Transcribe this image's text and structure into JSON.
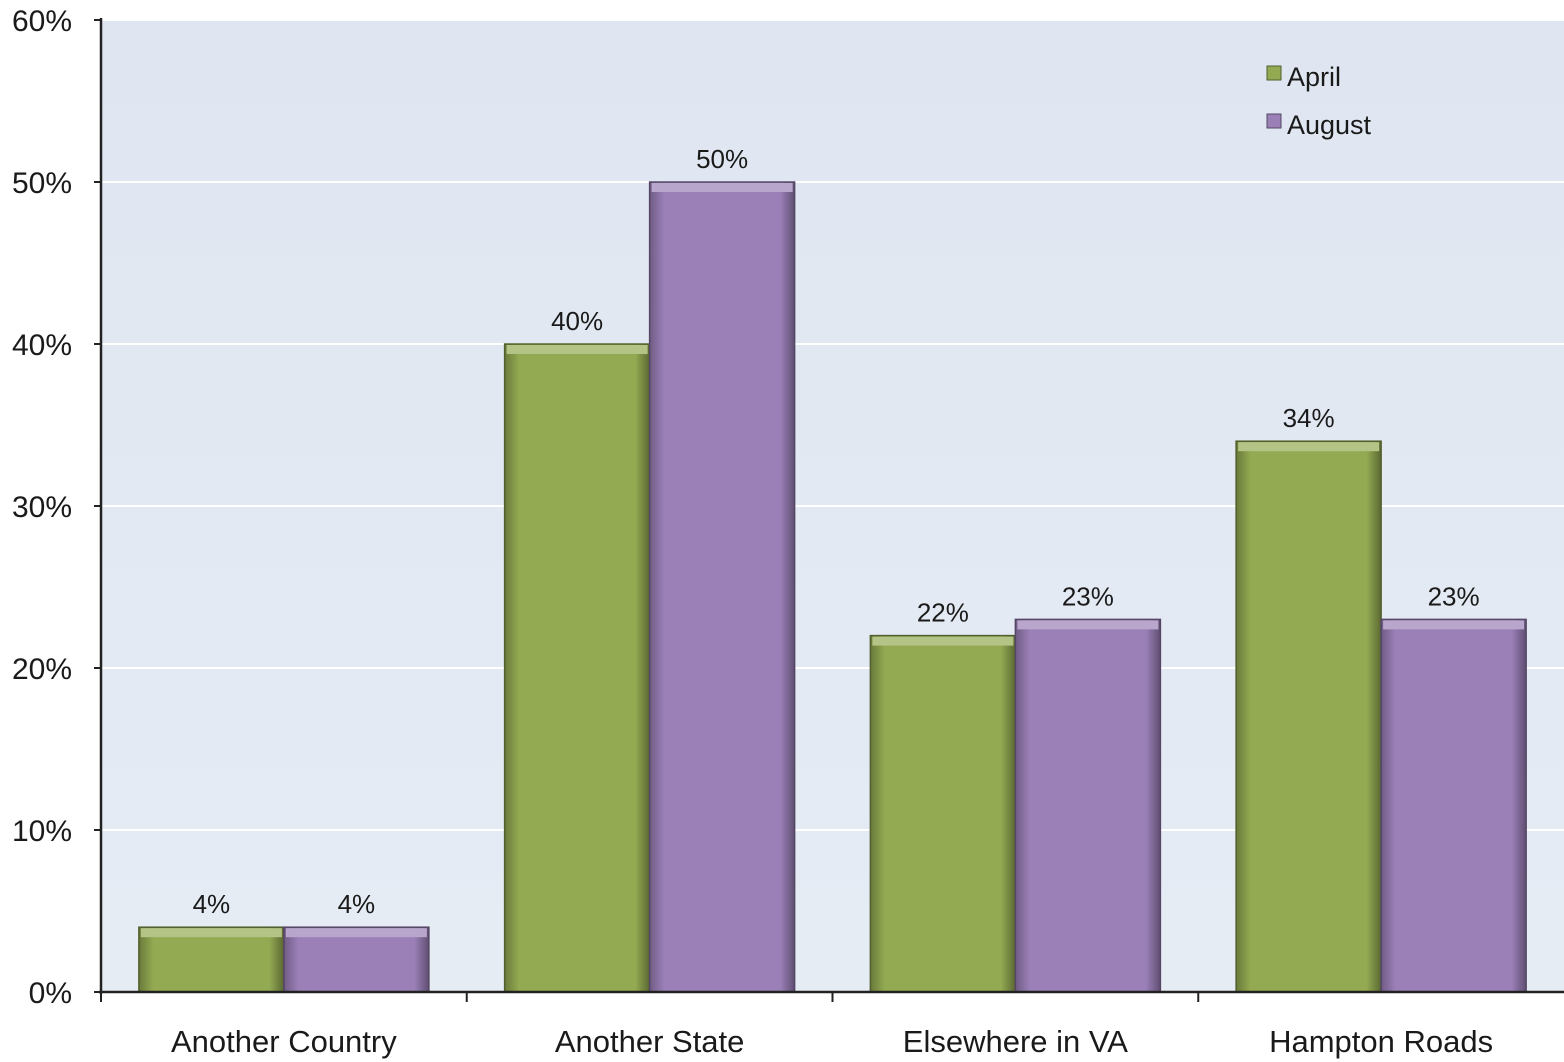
{
  "chart_data": {
    "type": "bar",
    "title": "",
    "xlabel": "",
    "ylabel": "",
    "categories": [
      "Another Country",
      "Another State",
      "Elsewhere in VA",
      "Hampton Roads"
    ],
    "series": [
      {
        "name": "April",
        "color": "#93aa52",
        "values": [
          4,
          40,
          22,
          34
        ],
        "labels": [
          "4%",
          "40%",
          "22%",
          "34%"
        ]
      },
      {
        "name": "August",
        "color": "#9b80b8",
        "values": [
          4,
          50,
          23,
          23
        ],
        "labels": [
          "4%",
          "50%",
          "23%",
          "23%"
        ]
      }
    ],
    "ylim": [
      0,
      60
    ],
    "yticks": [
      0,
      10,
      20,
      30,
      40,
      50,
      60
    ],
    "ytick_labels": [
      "0%",
      "10%",
      "20%",
      "30%",
      "40%",
      "50%",
      "60%"
    ],
    "grid": true,
    "legend_position": "top-right",
    "plot_background": "#e1e8f2"
  }
}
